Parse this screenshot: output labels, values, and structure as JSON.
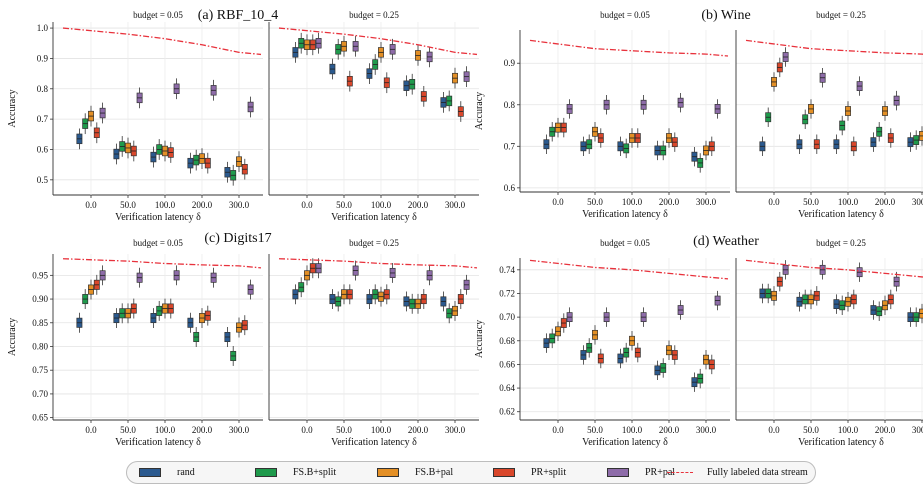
{
  "legend": {
    "items": [
      {
        "label": "rand",
        "color": "#2b5a8f"
      },
      {
        "label": "FS.B+split",
        "color": "#1f9a4c"
      },
      {
        "label": "FS.B+pal",
        "color": "#e38f25"
      },
      {
        "label": "PR+split",
        "color": "#d9472b"
      },
      {
        "label": "PR+pal",
        "color": "#8e6ca9"
      }
    ],
    "line_label": "Fully labeled data stream",
    "line_color": "#e8323c"
  },
  "chart_data": [
    {
      "type": "box",
      "panel_title": "(a) RBF_10_4",
      "xlabel": "Verification latency δ",
      "ylabel": "Accuracy",
      "categories": [
        "0.0",
        "50.0",
        "100.0",
        "200.0",
        "300.0"
      ],
      "subplots": [
        {
          "subtitle": "budget = 0.05",
          "ylim": [
            0.45,
            1.02
          ],
          "yticks": [
            "0.5",
            "0.6",
            "0.7",
            "0.8",
            "0.9",
            "1.0"
          ],
          "yticks_values": [
            0.5,
            0.6,
            0.7,
            0.8,
            0.9,
            1.0
          ],
          "fully_labeled": [
            1.0,
            0.98,
            0.965,
            0.945,
            0.92
          ],
          "series": [
            {
              "name": "rand",
              "medians": [
                0.635,
                0.585,
                0.575,
                0.555,
                0.525
              ]
            },
            {
              "name": "FS.B+split",
              "medians": [
                0.685,
                0.61,
                0.6,
                0.565,
                0.515
              ]
            },
            {
              "name": "FS.B+pal",
              "medians": [
                0.71,
                0.605,
                0.595,
                0.57,
                0.56
              ]
            },
            {
              "name": "PR+split",
              "medians": [
                0.655,
                0.595,
                0.59,
                0.555,
                0.535
              ]
            },
            {
              "name": "PR+pal",
              "medians": [
                0.72,
                0.77,
                0.8,
                0.795,
                0.74
              ]
            }
          ]
        },
        {
          "subtitle": "budget = 0.25",
          "ylim": [
            0.45,
            1.02
          ],
          "yticks": [],
          "yticks_values": [],
          "fully_labeled": [
            1.0,
            0.98,
            0.965,
            0.945,
            0.92
          ],
          "series": [
            {
              "name": "rand",
              "medians": [
                0.92,
                0.865,
                0.85,
                0.81,
                0.755
              ]
            },
            {
              "name": "FS.B+split",
              "medians": [
                0.95,
                0.93,
                0.88,
                0.815,
                0.76
              ]
            },
            {
              "name": "FS.B+pal",
              "medians": [
                0.945,
                0.94,
                0.92,
                0.91,
                0.835
              ]
            },
            {
              "name": "PR+split",
              "medians": [
                0.945,
                0.825,
                0.82,
                0.775,
                0.725
              ]
            },
            {
              "name": "PR+pal",
              "medians": [
                0.95,
                0.94,
                0.93,
                0.905,
                0.84
              ]
            }
          ]
        }
      ]
    },
    {
      "type": "box",
      "panel_title": "(b) Wine",
      "xlabel": "Verification latency δ",
      "ylabel": "Accuracy",
      "categories": [
        "0.0",
        "50.0",
        "100.0",
        "200.0",
        "300.0"
      ],
      "subplots": [
        {
          "subtitle": "budget = 0.05",
          "ylim": [
            0.59,
            0.98
          ],
          "yticks": [
            "0.6",
            "0.7",
            "0.8",
            "0.9"
          ],
          "yticks_values": [
            0.6,
            0.7,
            0.8,
            0.9
          ],
          "fully_labeled": [
            0.955,
            0.935,
            0.93,
            0.925,
            0.922
          ],
          "series": [
            {
              "name": "rand",
              "medians": [
                0.705,
                0.7,
                0.7,
                0.69,
                0.675
              ]
            },
            {
              "name": "FS.B+split",
              "medians": [
                0.735,
                0.705,
                0.695,
                0.69,
                0.66
              ]
            },
            {
              "name": "FS.B+pal",
              "medians": [
                0.745,
                0.735,
                0.72,
                0.72,
                0.69
              ]
            },
            {
              "name": "PR+split",
              "medians": [
                0.745,
                0.72,
                0.72,
                0.71,
                0.7
              ]
            },
            {
              "name": "PR+pal",
              "medians": [
                0.79,
                0.8,
                0.8,
                0.805,
                0.79
              ]
            }
          ]
        },
        {
          "subtitle": "budget = 0.25",
          "ylim": [
            0.59,
            0.98
          ],
          "yticks": [],
          "yticks_values": [],
          "fully_labeled": [
            0.955,
            0.935,
            0.93,
            0.925,
            0.922
          ],
          "series": [
            {
              "name": "rand",
              "medians": [
                0.7,
                0.705,
                0.705,
                0.71,
                0.71
              ]
            },
            {
              "name": "FS.B+split",
              "medians": [
                0.77,
                0.765,
                0.75,
                0.735,
                0.715
              ]
            },
            {
              "name": "FS.B+pal",
              "medians": [
                0.855,
                0.79,
                0.785,
                0.785,
                0.725
              ]
            },
            {
              "name": "PR+split",
              "medians": [
                0.89,
                0.705,
                0.7,
                0.72,
                0.715
              ]
            },
            {
              "name": "PR+pal",
              "medians": [
                0.915,
                0.865,
                0.845,
                0.81,
                0.775
              ]
            }
          ]
        }
      ]
    },
    {
      "type": "box",
      "panel_title": "(c) Digits17",
      "xlabel": "Verification latency δ",
      "ylabel": "Accuracy",
      "categories": [
        "0.0",
        "50.0",
        "100.0",
        "200.0",
        "300.0"
      ],
      "subplots": [
        {
          "subtitle": "budget = 0.05",
          "ylim": [
            0.645,
            0.995
          ],
          "yticks": [
            "0.65",
            "0.70",
            "0.75",
            "0.80",
            "0.85",
            "0.90",
            "0.95"
          ],
          "yticks_values": [
            0.65,
            0.7,
            0.75,
            0.8,
            0.85,
            0.9,
            0.95
          ],
          "fully_labeled": [
            0.985,
            0.98,
            0.975,
            0.972,
            0.97
          ],
          "series": [
            {
              "name": "rand",
              "medians": [
                0.85,
                0.86,
                0.86,
                0.85,
                0.82
              ]
            },
            {
              "name": "FS.B+split",
              "medians": [
                0.9,
                0.87,
                0.875,
                0.82,
                0.78
              ]
            },
            {
              "name": "FS.B+pal",
              "medians": [
                0.92,
                0.87,
                0.88,
                0.86,
                0.84
              ]
            },
            {
              "name": "PR+split",
              "medians": [
                0.93,
                0.88,
                0.88,
                0.865,
                0.845
              ]
            },
            {
              "name": "PR+pal",
              "medians": [
                0.95,
                0.945,
                0.95,
                0.945,
                0.92
              ]
            }
          ]
        },
        {
          "subtitle": "budget = 0.25",
          "ylim": [
            0.645,
            0.995
          ],
          "yticks": [],
          "yticks_values": [],
          "fully_labeled": [
            0.985,
            0.98,
            0.975,
            0.972,
            0.97
          ],
          "series": [
            {
              "name": "rand",
              "medians": [
                0.91,
                0.9,
                0.9,
                0.895,
                0.895
              ]
            },
            {
              "name": "FS.B+split",
              "medians": [
                0.925,
                0.895,
                0.91,
                0.89,
                0.87
              ]
            },
            {
              "name": "FS.B+pal",
              "medians": [
                0.95,
                0.91,
                0.905,
                0.89,
                0.875
              ]
            },
            {
              "name": "PR+split",
              "medians": [
                0.965,
                0.91,
                0.91,
                0.9,
                0.9
              ]
            },
            {
              "name": "PR+pal",
              "medians": [
                0.965,
                0.96,
                0.955,
                0.95,
                0.93
              ]
            }
          ]
        }
      ]
    },
    {
      "type": "box",
      "panel_title": "(d) Weather",
      "xlabel": "Verification latency δ",
      "ylabel": "Accuracy",
      "categories": [
        "0.0",
        "50.0",
        "100.0",
        "200.0",
        "300.0"
      ],
      "subplots": [
        {
          "subtitle": "budget = 0.05",
          "ylim": [
            0.613,
            0.75
          ],
          "yticks": [
            "0.62",
            "0.64",
            "0.66",
            "0.68",
            "0.70",
            "0.72",
            "0.74"
          ],
          "yticks_values": [
            0.62,
            0.64,
            0.66,
            0.68,
            0.7,
            0.72,
            0.74
          ],
          "fully_labeled": [
            0.748,
            0.742,
            0.74,
            0.737,
            0.734
          ],
          "series": [
            {
              "name": "rand",
              "medians": [
                0.678,
                0.668,
                0.665,
                0.655,
                0.645
              ]
            },
            {
              "name": "FS.B+split",
              "medians": [
                0.682,
                0.674,
                0.67,
                0.657,
                0.648
              ]
            },
            {
              "name": "FS.B+pal",
              "medians": [
                0.688,
                0.685,
                0.68,
                0.672,
                0.664
              ]
            },
            {
              "name": "PR+split",
              "medians": [
                0.695,
                0.665,
                0.67,
                0.668,
                0.66
              ]
            },
            {
              "name": "PR+pal",
              "medians": [
                0.7,
                0.7,
                0.7,
                0.706,
                0.714
              ]
            }
          ]
        },
        {
          "subtitle": "budget = 0.25",
          "ylim": [
            0.613,
            0.75
          ],
          "yticks": [],
          "yticks_values": [],
          "fully_labeled": [
            0.748,
            0.742,
            0.74,
            0.737,
            0.734
          ],
          "series": [
            {
              "name": "rand",
              "medians": [
                0.72,
                0.713,
                0.711,
                0.706,
                0.7
              ]
            },
            {
              "name": "FS.B+split",
              "medians": [
                0.72,
                0.715,
                0.71,
                0.705,
                0.7
              ]
            },
            {
              "name": "FS.B+pal",
              "medians": [
                0.718,
                0.715,
                0.713,
                0.71,
                0.703
              ]
            },
            {
              "name": "PR+split",
              "medians": [
                0.73,
                0.718,
                0.715,
                0.715,
                0.705
              ]
            },
            {
              "name": "PR+pal",
              "medians": [
                0.74,
                0.74,
                0.738,
                0.73,
                0.725
              ]
            }
          ]
        }
      ]
    }
  ]
}
